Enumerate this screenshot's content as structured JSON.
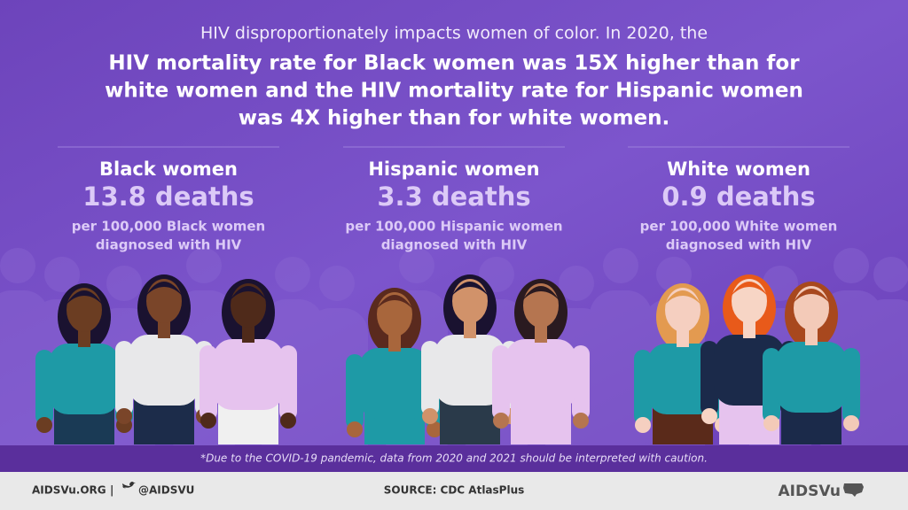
{
  "intro": "HIV disproportionately impacts women of color. In 2020, the",
  "headline": [
    "HIV mortality rate for Black women was 15X higher than for",
    "white women and the HIV mortality rate for Hispanic women",
    "was 4X higher than for white women."
  ],
  "groups": [
    {
      "title": "Black women",
      "stat": "13.8 deaths",
      "detail": [
        "per 100,000 Black women",
        "diagnosed with HIV"
      ]
    },
    {
      "title": "Hispanic women",
      "stat": "3.3 deaths",
      "detail": [
        "per 100,000 Hispanic women",
        "diagnosed with HIV"
      ]
    },
    {
      "title": "White women",
      "stat": "0.9 deaths",
      "detail": [
        "per 100,000 White women",
        "diagnosed with HIV"
      ]
    }
  ],
  "footnote": "*Due to the COVID-19 pandemic, data from 2020 and 2021 should be interpreted with caution.",
  "footer": {
    "site": "AIDSVu.ORG",
    "separator": "|",
    "handle": "@AIDSVU",
    "source": "SOURCE: CDC AtlasPlus",
    "logo": "AIDSVu"
  }
}
